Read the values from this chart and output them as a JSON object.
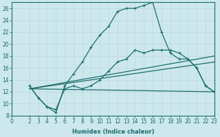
{
  "xlabel": "Humidex (Indice chaleur)",
  "bg_color": "#cce8ec",
  "grid_color": "#b0d0d8",
  "line_color": "#1a6b6b",
  "xlim": [
    0,
    23
  ],
  "ylim": [
    8,
    27
  ],
  "xticks": [
    0,
    2,
    3,
    4,
    5,
    6,
    7,
    8,
    9,
    10,
    11,
    12,
    13,
    14,
    15,
    16,
    17,
    18,
    19,
    20,
    21,
    22,
    23
  ],
  "yticks": [
    8,
    10,
    12,
    14,
    16,
    18,
    20,
    22,
    24,
    26
  ],
  "lines": [
    {
      "x": [
        2,
        3,
        4,
        5,
        6,
        7,
        8,
        9,
        10,
        11,
        12,
        13,
        14,
        15,
        16,
        17,
        18,
        19,
        20,
        21,
        22,
        23
      ],
      "y": [
        13,
        11,
        9.5,
        8.5,
        13,
        15,
        17,
        19.5,
        21.5,
        23,
        25.5,
        26,
        26,
        26.5,
        27,
        22,
        18.5,
        17.5,
        17.5,
        16,
        13,
        12
      ],
      "marker": "+"
    },
    {
      "x": [
        2,
        3,
        4,
        5,
        6,
        7,
        8,
        9,
        10,
        11,
        12,
        13,
        14,
        15,
        16,
        17,
        18,
        19,
        20,
        21,
        22,
        23
      ],
      "y": [
        13,
        11,
        9.5,
        9,
        12.5,
        13,
        12.5,
        13,
        14,
        15.5,
        17,
        17.5,
        19,
        18.5,
        19,
        19,
        19,
        18.5,
        17.5,
        16,
        13,
        12
      ],
      "marker": "+"
    },
    {
      "x": [
        2,
        23
      ],
      "y": [
        12.5,
        18
      ],
      "marker": null
    },
    {
      "x": [
        2,
        23
      ],
      "y": [
        12.5,
        17
      ],
      "marker": null
    },
    {
      "x": [
        2,
        23
      ],
      "y": [
        12.5,
        12
      ],
      "marker": null
    }
  ]
}
